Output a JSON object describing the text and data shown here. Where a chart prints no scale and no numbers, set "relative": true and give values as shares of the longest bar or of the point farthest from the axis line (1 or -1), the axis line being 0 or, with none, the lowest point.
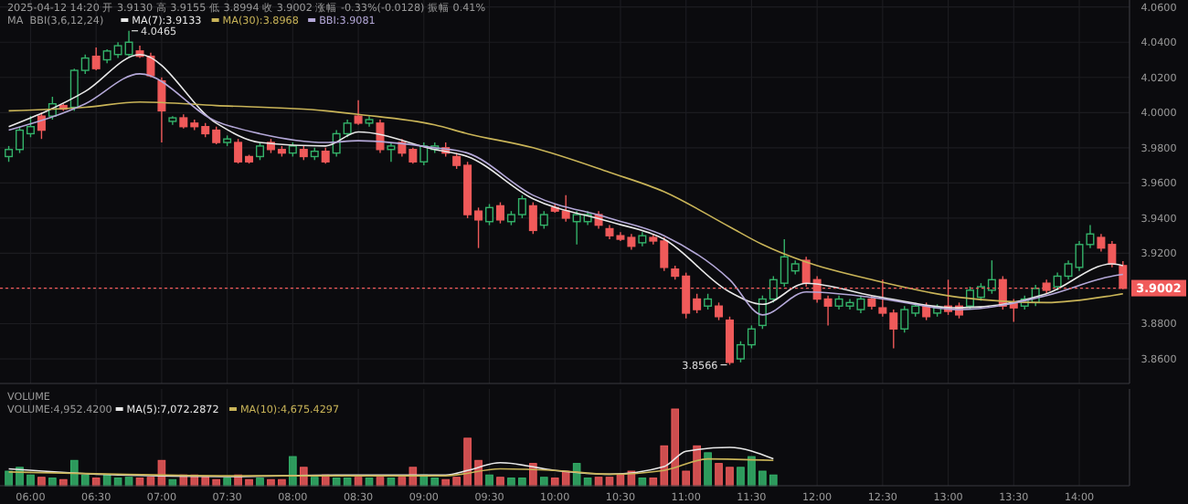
{
  "chart_data": [
    {
      "type": "candlestick",
      "title": "2025-04-12 14:20  开 3.9130  高 3.9155  低 3.8994  收 3.9002  涨幅 -0.33%(-0.0128)  振幅 0.41%",
      "legend": "top left",
      "grid": true,
      "tick_labels": "y",
      "annotations": [
        "MA",
        "BBI(3,6,12,24)",
        {
          "text": "4.0465",
          "x": "2025-04-12T06:45",
          "y": 4.0465
        },
        {
          "text": "3.8566",
          "x": "2025-04-12T11:20",
          "y": 3.8566
        }
      ],
      "xlim": [
        "2025-04-12T05:46",
        "2025-04-12T14:23"
      ],
      "xticks": [
        {
          "value": "2025-04-12T06:00",
          "label": null
        },
        {
          "value": "2025-04-12T06:30",
          "label": null
        },
        {
          "value": "2025-04-12T07:00",
          "label": null
        },
        {
          "value": "2025-04-12T07:30",
          "label": null
        },
        {
          "value": "2025-04-12T08:00",
          "label": null
        },
        {
          "value": "2025-04-12T08:30",
          "label": null
        },
        {
          "value": "2025-04-12T09:00",
          "label": null
        },
        {
          "value": "2025-04-12T09:30",
          "label": null
        },
        {
          "value": "2025-04-12T10:00",
          "label": null
        },
        {
          "value": "2025-04-12T10:30",
          "label": null
        },
        {
          "value": "2025-04-12T11:00",
          "label": null
        },
        {
          "value": "2025-04-12T11:30",
          "label": null
        },
        {
          "value": "2025-04-12T12:00",
          "label": null
        },
        {
          "value": "2025-04-12T12:30",
          "label": null
        },
        {
          "value": "2025-04-12T13:00",
          "label": null
        },
        {
          "value": "2025-04-12T13:30",
          "label": null
        },
        {
          "value": "2025-04-12T14:00",
          "label": null
        }
      ],
      "ylim": [
        3.846,
        4.064
      ],
      "yticks": [
        {
          "value": 3.86,
          "label": "3.8600"
        },
        {
          "value": 3.88,
          "label": "3.8800"
        },
        {
          "value": 3.9,
          "label": null
        },
        {
          "value": 3.92,
          "label": "3.9200"
        },
        {
          "value": 3.94,
          "label": "3.9400"
        },
        {
          "value": 3.96,
          "label": "3.9600"
        },
        {
          "value": 3.98,
          "label": "3.9800"
        },
        {
          "value": 4.0,
          "label": "4.0000"
        },
        {
          "value": 4.02,
          "label": "4.0200"
        },
        {
          "value": 4.04,
          "label": "4.0400"
        },
        {
          "value": 4.06,
          "label": "4.0600"
        }
      ],
      "ref_lines": [
        {
          "axis": "y",
          "value": 3.9002,
          "label": "3.9002",
          "color": "#f05a5a",
          "line_style": "dotted"
        }
      ],
      "x": [
        "2025-04-12T05:50",
        "2025-04-12T05:55",
        "2025-04-12T06:00",
        "2025-04-12T06:05",
        "2025-04-12T06:10",
        "2025-04-12T06:15",
        "2025-04-12T06:20",
        "2025-04-12T06:25",
        "2025-04-12T06:30",
        "2025-04-12T06:35",
        "2025-04-12T06:40",
        "2025-04-12T06:45",
        "2025-04-12T06:50",
        "2025-04-12T06:55",
        "2025-04-12T07:00",
        "2025-04-12T07:05",
        "2025-04-12T07:10",
        "2025-04-12T07:15",
        "2025-04-12T07:20",
        "2025-04-12T07:25",
        "2025-04-12T07:30",
        "2025-04-12T07:35",
        "2025-04-12T07:40",
        "2025-04-12T07:45",
        "2025-04-12T07:50",
        "2025-04-12T07:55",
        "2025-04-12T08:00",
        "2025-04-12T08:05",
        "2025-04-12T08:10",
        "2025-04-12T08:15",
        "2025-04-12T08:20",
        "2025-04-12T08:25",
        "2025-04-12T08:30",
        "2025-04-12T08:35",
        "2025-04-12T08:40",
        "2025-04-12T08:45",
        "2025-04-12T08:50",
        "2025-04-12T08:55",
        "2025-04-12T09:00",
        "2025-04-12T09:05",
        "2025-04-12T09:10",
        "2025-04-12T09:15",
        "2025-04-12T09:20",
        "2025-04-12T09:25",
        "2025-04-12T09:30",
        "2025-04-12T09:35",
        "2025-04-12T09:40",
        "2025-04-12T09:45",
        "2025-04-12T09:50",
        "2025-04-12T09:55",
        "2025-04-12T10:00",
        "2025-04-12T10:05",
        "2025-04-12T10:10",
        "2025-04-12T10:15",
        "2025-04-12T10:20",
        "2025-04-12T10:25",
        "2025-04-12T10:30",
        "2025-04-12T10:35",
        "2025-04-12T10:40",
        "2025-04-12T10:45",
        "2025-04-12T10:50",
        "2025-04-12T10:55",
        "2025-04-12T11:00",
        "2025-04-12T11:05",
        "2025-04-12T11:10",
        "2025-04-12T11:15",
        "2025-04-12T11:20",
        "2025-04-12T11:25",
        "2025-04-12T11:30",
        "2025-04-12T11:35",
        "2025-04-12T11:40",
        "2025-04-12T11:45",
        "2025-04-12T11:50",
        "2025-04-12T11:55",
        "2025-04-12T12:00",
        "2025-04-12T12:05",
        "2025-04-12T12:10",
        "2025-04-12T12:15",
        "2025-04-12T12:20",
        "2025-04-12T12:25",
        "2025-04-12T12:30",
        "2025-04-12T12:35",
        "2025-04-12T12:40",
        "2025-04-12T12:45",
        "2025-04-12T12:50",
        "2025-04-12T12:55",
        "2025-04-12T13:00",
        "2025-04-12T13:05",
        "2025-04-12T13:10",
        "2025-04-12T13:15",
        "2025-04-12T13:20",
        "2025-04-12T13:25",
        "2025-04-12T13:30",
        "2025-04-12T13:35",
        "2025-04-12T13:40",
        "2025-04-12T13:45",
        "2025-04-12T13:50",
        "2025-04-12T13:55",
        "2025-04-12T14:00",
        "2025-04-12T14:05",
        "2025-04-12T14:10",
        "2025-04-12T14:15",
        "2025-04-12T14:20"
      ],
      "ohlc": [
        [
          3.975,
          3.981,
          3.972,
          3.979
        ],
        [
          3.979,
          3.992,
          3.977,
          3.99
        ],
        [
          3.988,
          3.998,
          3.986,
          3.992
        ],
        [
          3.998,
          4.0,
          3.985,
          3.99
        ],
        [
          3.998,
          4.009,
          3.996,
          4.005
        ],
        [
          4.004,
          4.005,
          4.001,
          4.002
        ],
        [
          4.003,
          4.025,
          4.001,
          4.024
        ],
        [
          4.024,
          4.033,
          4.022,
          4.031
        ],
        [
          4.032,
          4.037,
          4.024,
          4.025
        ],
        [
          4.03,
          4.036,
          4.028,
          4.035
        ],
        [
          4.033,
          4.04,
          4.031,
          4.038
        ],
        [
          4.033,
          4.0465,
          4.032,
          4.04
        ],
        [
          4.035,
          4.038,
          4.031,
          4.032
        ],
        [
          4.032,
          4.034,
          4.02,
          4.021
        ],
        [
          4.018,
          4.02,
          3.983,
          4.001
        ],
        [
          3.995,
          3.998,
          3.993,
          3.997
        ],
        [
          3.997,
          3.999,
          3.991,
          3.992
        ],
        [
          3.994,
          3.996,
          3.99,
          3.992
        ],
        [
          3.992,
          3.994,
          3.986,
          3.988
        ],
        [
          3.99,
          3.992,
          3.982,
          3.983
        ],
        [
          3.983,
          3.987,
          3.981,
          3.985
        ],
        [
          3.983,
          3.985,
          3.971,
          3.972
        ],
        [
          3.975,
          3.976,
          3.971,
          3.972
        ],
        [
          3.975,
          3.983,
          3.973,
          3.981
        ],
        [
          3.983,
          3.985,
          3.977,
          3.979
        ],
        [
          3.979,
          3.981,
          3.975,
          3.977
        ],
        [
          3.977,
          3.983,
          3.975,
          3.981
        ],
        [
          3.979,
          3.981,
          3.973,
          3.975
        ],
        [
          3.975,
          3.98,
          3.973,
          3.978
        ],
        [
          3.978,
          3.98,
          3.971,
          3.972
        ],
        [
          3.977,
          3.99,
          3.975,
          3.988
        ],
        [
          3.988,
          3.996,
          3.986,
          3.994
        ],
        [
          3.998,
          4.007,
          3.993,
          3.994
        ],
        [
          3.994,
          3.998,
          3.992,
          3.996
        ],
        [
          3.994,
          3.996,
          3.977,
          3.979
        ],
        [
          3.979,
          3.983,
          3.972,
          3.981
        ],
        [
          3.983,
          3.985,
          3.975,
          3.977
        ],
        [
          3.979,
          3.98,
          3.971,
          3.972
        ],
        [
          3.972,
          3.983,
          3.97,
          3.981
        ],
        [
          3.979,
          3.983,
          3.977,
          3.981
        ],
        [
          3.98,
          3.983,
          3.975,
          3.977
        ],
        [
          3.975,
          3.977,
          3.968,
          3.97
        ],
        [
          3.97,
          3.972,
          3.94,
          3.942
        ],
        [
          3.944,
          3.946,
          3.923,
          3.939
        ],
        [
          3.938,
          3.948,
          3.936,
          3.946
        ],
        [
          3.947,
          3.949,
          3.937,
          3.939
        ],
        [
          3.938,
          3.944,
          3.936,
          3.942
        ],
        [
          3.942,
          3.953,
          3.94,
          3.951
        ],
        [
          3.947,
          3.949,
          3.931,
          3.933
        ],
        [
          3.936,
          3.944,
          3.934,
          3.942
        ],
        [
          3.946,
          3.948,
          3.943,
          3.944
        ],
        [
          3.944,
          3.953,
          3.938,
          3.94
        ],
        [
          3.938,
          3.944,
          3.925,
          3.942
        ],
        [
          3.938,
          3.944,
          3.936,
          3.942
        ],
        [
          3.942,
          3.944,
          3.934,
          3.936
        ],
        [
          3.934,
          3.936,
          3.928,
          3.93
        ],
        [
          3.93,
          3.932,
          3.927,
          3.928
        ],
        [
          3.929,
          3.931,
          3.922,
          3.924
        ],
        [
          3.926,
          3.932,
          3.924,
          3.93
        ],
        [
          3.929,
          3.931,
          3.925,
          3.927
        ],
        [
          3.927,
          3.929,
          3.91,
          3.912
        ],
        [
          3.911,
          3.913,
          3.905,
          3.907
        ],
        [
          3.907,
          3.909,
          3.883,
          3.886
        ],
        [
          3.894,
          3.897,
          3.886,
          3.888
        ],
        [
          3.89,
          3.897,
          3.888,
          3.894
        ],
        [
          3.89,
          3.892,
          3.882,
          3.884
        ],
        [
          3.882,
          3.884,
          3.8566,
          3.858
        ],
        [
          3.86,
          3.87,
          3.858,
          3.868
        ],
        [
          3.868,
          3.879,
          3.866,
          3.877
        ],
        [
          3.879,
          3.896,
          3.877,
          3.894
        ],
        [
          3.894,
          3.907,
          3.892,
          3.905
        ],
        [
          3.903,
          3.928,
          3.901,
          3.918
        ],
        [
          3.91,
          3.916,
          3.908,
          3.914
        ],
        [
          3.916,
          3.918,
          3.901,
          3.903
        ],
        [
          3.905,
          3.907,
          3.892,
          3.894
        ],
        [
          3.894,
          3.896,
          3.879,
          3.89
        ],
        [
          3.89,
          3.896,
          3.888,
          3.894
        ],
        [
          3.89,
          3.894,
          3.888,
          3.892
        ],
        [
          3.888,
          3.896,
          3.886,
          3.894
        ],
        [
          3.894,
          3.896,
          3.888,
          3.89
        ],
        [
          3.889,
          3.905,
          3.884,
          3.886
        ],
        [
          3.886,
          3.888,
          3.866,
          3.877
        ],
        [
          3.877,
          3.89,
          3.875,
          3.888
        ],
        [
          3.886,
          3.892,
          3.884,
          3.89
        ],
        [
          3.89,
          3.892,
          3.882,
          3.884
        ],
        [
          3.886,
          3.891,
          3.884,
          3.889
        ],
        [
          3.89,
          3.905,
          3.885,
          3.887
        ],
        [
          3.89,
          3.892,
          3.883,
          3.885
        ],
        [
          3.89,
          3.901,
          3.888,
          3.899
        ],
        [
          3.895,
          3.903,
          3.893,
          3.901
        ],
        [
          3.899,
          3.916,
          3.897,
          3.905
        ],
        [
          3.905,
          3.907,
          3.888,
          3.89
        ],
        [
          3.892,
          3.894,
          3.881,
          3.889
        ],
        [
          3.89,
          3.896,
          3.888,
          3.894
        ],
        [
          3.892,
          3.902,
          3.89,
          3.9
        ],
        [
          3.903,
          3.905,
          3.897,
          3.899
        ],
        [
          3.901,
          3.909,
          3.899,
          3.907
        ],
        [
          3.907,
          3.916,
          3.905,
          3.914
        ],
        [
          3.912,
          3.927,
          3.91,
          3.925
        ],
        [
          3.925,
          3.936,
          3.923,
          3.931
        ],
        [
          3.929,
          3.931,
          3.921,
          3.923
        ],
        [
          3.925,
          3.927,
          3.912,
          3.914
        ],
        [
          3.913,
          3.9155,
          3.8994,
          3.9002
        ]
      ],
      "series": [
        {
          "type": "line",
          "name": "MA(7):3.9133",
          "color": "#e8e8e8",
          "x": [
            "2025-04-12T05:50",
            "2025-04-12T06:25",
            "2025-04-12T06:50",
            "2025-04-12T07:25",
            "2025-04-12T07:45",
            "2025-04-12T08:15",
            "2025-04-12T08:30",
            "2025-04-12T09:05",
            "2025-04-12T09:20",
            "2025-04-12T09:50",
            "2025-04-12T10:25",
            "2025-04-12T10:50",
            "2025-04-12T11:20",
            "2025-04-12T11:35",
            "2025-04-12T11:55",
            "2025-04-12T12:25",
            "2025-04-12T13:05",
            "2025-04-12T13:45",
            "2025-04-12T14:15",
            "2025-04-12T14:20"
          ],
          "values": [
            3.992,
            4.012,
            4.033,
            3.994,
            3.983,
            3.981,
            3.989,
            3.979,
            3.975,
            3.951,
            3.938,
            3.928,
            3.898,
            3.891,
            3.903,
            3.896,
            3.889,
            3.897,
            3.914,
            3.913
          ]
        },
        {
          "type": "line",
          "name": "MA(30):3.8968",
          "color": "#c9b458",
          "x": [
            "2025-04-12T05:50",
            "2025-04-12T06:25",
            "2025-04-12T06:50",
            "2025-04-12T07:25",
            "2025-04-12T08:15",
            "2025-04-12T08:30",
            "2025-04-12T09:05",
            "2025-04-12T09:20",
            "2025-04-12T09:50",
            "2025-04-12T10:25",
            "2025-04-12T10:50",
            "2025-04-12T11:20",
            "2025-04-12T11:35",
            "2025-04-12T11:55",
            "2025-04-12T12:25",
            "2025-04-12T13:05",
            "2025-04-12T13:45",
            "2025-04-12T14:15",
            "2025-04-12T14:20"
          ],
          "values": [
            4.001,
            4.003,
            4.006,
            4.004,
            4.001,
            3.999,
            3.993,
            3.988,
            3.98,
            3.966,
            3.955,
            3.935,
            3.925,
            3.915,
            3.905,
            3.895,
            3.892,
            3.896,
            3.897
          ]
        },
        {
          "type": "line",
          "name": "BBI:3.9081",
          "color": "#b4a8d8",
          "x": [
            "2025-04-12T05:50",
            "2025-04-12T06:25",
            "2025-04-12T06:50",
            "2025-04-12T07:25",
            "2025-04-12T07:45",
            "2025-04-12T08:15",
            "2025-04-12T08:30",
            "2025-04-12T09:05",
            "2025-04-12T09:20",
            "2025-04-12T09:50",
            "2025-04-12T10:25",
            "2025-04-12T10:50",
            "2025-04-12T11:20",
            "2025-04-12T11:35",
            "2025-04-12T11:55",
            "2025-04-12T12:25",
            "2025-04-12T13:05",
            "2025-04-12T13:45",
            "2025-04-12T14:15",
            "2025-04-12T14:20"
          ],
          "values": [
            3.99,
            4.005,
            4.022,
            3.995,
            3.988,
            3.983,
            3.984,
            3.98,
            3.977,
            3.953,
            3.94,
            3.93,
            3.905,
            3.885,
            3.898,
            3.895,
            3.888,
            3.896,
            3.907,
            3.908
          ]
        }
      ]
    },
    {
      "type": "bar",
      "relative": true,
      "title": "VOLUME",
      "legend": "top left",
      "grid": true,
      "tick_labels": "x",
      "annotations": [
        "VOLUME:4,952.4200"
      ],
      "xlim": [
        "2025-04-12T05:46",
        "2025-04-12T14:23"
      ],
      "xticks": [
        {
          "value": "2025-04-12T06:00",
          "label": "06:00"
        },
        {
          "value": "2025-04-12T06:30",
          "label": "06:30"
        },
        {
          "value": "2025-04-12T07:00",
          "label": "07:00"
        },
        {
          "value": "2025-04-12T07:30",
          "label": "07:30"
        },
        {
          "value": "2025-04-12T08:00",
          "label": "08:00"
        },
        {
          "value": "2025-04-12T08:30",
          "label": "08:30"
        },
        {
          "value": "2025-04-12T09:00",
          "label": "09:00"
        },
        {
          "value": "2025-04-12T09:30",
          "label": "09:30"
        },
        {
          "value": "2025-04-12T10:00",
          "label": "10:00"
        },
        {
          "value": "2025-04-12T10:30",
          "label": "10:30"
        },
        {
          "value": "2025-04-12T11:00",
          "label": "11:00"
        },
        {
          "value": "2025-04-12T11:30",
          "label": "11:30"
        },
        {
          "value": "2025-04-12T12:00",
          "label": "12:00"
        },
        {
          "value": "2025-04-12T12:30",
          "label": "12:30"
        },
        {
          "value": "2025-04-12T13:00",
          "label": "13:00"
        },
        {
          "value": "2025-04-12T13:30",
          "label": "13:30"
        },
        {
          "value": "2025-04-12T14:00",
          "label": "14:00"
        }
      ],
      "x": [
        "2025-04-12T05:50",
        "2025-04-12T05:55",
        "2025-04-12T06:00",
        "2025-04-12T06:05",
        "2025-04-12T06:10",
        "2025-04-12T06:15",
        "2025-04-12T06:20",
        "2025-04-12T06:25",
        "2025-04-12T06:30",
        "2025-04-12T06:35",
        "2025-04-12T06:40",
        "2025-04-12T06:45",
        "2025-04-12T06:50",
        "2025-04-12T06:55",
        "2025-04-12T07:00",
        "2025-04-12T07:05",
        "2025-04-12T07:10",
        "2025-04-12T07:15",
        "2025-04-12T07:20",
        "2025-04-12T07:25",
        "2025-04-12T07:30",
        "2025-04-12T07:35",
        "2025-04-12T07:40",
        "2025-04-12T07:45",
        "2025-04-12T07:50",
        "2025-04-12T07:55",
        "2025-04-12T08:00",
        "2025-04-12T08:05",
        "2025-04-12T08:10",
        "2025-04-12T08:15",
        "2025-04-12T08:20",
        "2025-04-12T08:25",
        "2025-04-12T08:30",
        "2025-04-12T08:35",
        "2025-04-12T08:40",
        "2025-04-12T08:45",
        "2025-04-12T08:50",
        "2025-04-12T08:55",
        "2025-04-12T09:00",
        "2025-04-12T09:05",
        "2025-04-12T09:10",
        "2025-04-12T09:15",
        "2025-04-12T09:20",
        "2025-04-12T09:25",
        "2025-04-12T09:30",
        "2025-04-12T09:35",
        "2025-04-12T09:40",
        "2025-04-12T09:45",
        "2025-04-12T09:50",
        "2025-04-12T09:55",
        "2025-04-12T10:00",
        "2025-04-12T10:05",
        "2025-04-12T10:10",
        "2025-04-12T10:15",
        "2025-04-12T10:20",
        "2025-04-12T10:25",
        "2025-04-12T10:30",
        "2025-04-12T10:35",
        "2025-04-12T10:40",
        "2025-04-12T10:45",
        "2025-04-12T10:50",
        "2025-04-12T10:55",
        "2025-04-12T11:00",
        "2025-04-12T11:05",
        "2025-04-12T11:10",
        "2025-04-12T11:15",
        "2025-04-12T11:20",
        "2025-04-12T11:25",
        "2025-04-12T11:30",
        "2025-04-12T11:35",
        "2025-04-12T11:40"
      ],
      "values": [
        0.19,
        0.24,
        0.14,
        0.11,
        0.1,
        0.08,
        0.33,
        0.14,
        0.1,
        0.14,
        0.1,
        0.11,
        0.1,
        0.11,
        0.33,
        0.08,
        0.14,
        0.14,
        0.11,
        0.08,
        0.1,
        0.14,
        0.08,
        0.1,
        0.08,
        0.08,
        0.38,
        0.24,
        0.11,
        0.14,
        0.1,
        0.1,
        0.11,
        0.1,
        0.11,
        0.1,
        0.11,
        0.24,
        0.14,
        0.1,
        0.08,
        0.11,
        0.62,
        0.33,
        0.14,
        0.11,
        0.1,
        0.1,
        0.29,
        0.11,
        0.1,
        0.19,
        0.29,
        0.1,
        0.11,
        0.11,
        0.14,
        0.19,
        0.1,
        0.1,
        0.52,
        1,
        0.19,
        0.52,
        0.43,
        0.29,
        0.24,
        0.24,
        0.38,
        0.19,
        0.14
      ],
      "colors": [
        "#34b36a",
        "#34b36a",
        "#34b36a",
        "#f05a5a",
        "#34b36a",
        "#f05a5a",
        "#34b36a",
        "#34b36a",
        "#f05a5a",
        "#34b36a",
        "#34b36a",
        "#34b36a",
        "#f05a5a",
        "#f05a5a",
        "#f05a5a",
        "#34b36a",
        "#f05a5a",
        "#f05a5a",
        "#f05a5a",
        "#f05a5a",
        "#34b36a",
        "#f05a5a",
        "#f05a5a",
        "#34b36a",
        "#f05a5a",
        "#f05a5a",
        "#34b36a",
        "#f05a5a",
        "#34b36a",
        "#f05a5a",
        "#34b36a",
        "#34b36a",
        "#f05a5a",
        "#34b36a",
        "#f05a5a",
        "#34b36a",
        "#f05a5a",
        "#f05a5a",
        "#34b36a",
        "#34b36a",
        "#f05a5a",
        "#f05a5a",
        "#f05a5a",
        "#f05a5a",
        "#34b36a",
        "#f05a5a",
        "#34b36a",
        "#34b36a",
        "#f05a5a",
        "#34b36a",
        "#f05a5a",
        "#f05a5a",
        "#34b36a",
        "#34b36a",
        "#f05a5a",
        "#f05a5a",
        "#f05a5a",
        "#f05a5a",
        "#34b36a",
        "#f05a5a",
        "#f05a5a",
        "#f05a5a",
        "#f05a5a",
        "#f05a5a",
        "#34b36a",
        "#f05a5a",
        "#f05a5a",
        "#34b36a",
        "#34b36a",
        "#34b36a",
        "#34b36a"
      ],
      "series": [
        {
          "type": "line",
          "name": "MA(5):7,072.2872",
          "color": "#e8e8e8",
          "x": [
            "2025-04-12T05:50",
            "2025-04-12T06:40",
            "2025-04-12T07:30",
            "2025-04-12T08:20",
            "2025-04-12T09:10",
            "2025-04-12T09:20",
            "2025-04-12T09:35",
            "2025-04-12T10:00",
            "2025-04-12T10:25",
            "2025-04-12T10:50",
            "2025-04-12T11:00",
            "2025-04-12T11:20",
            "2025-04-12T11:40"
          ],
          "values": [
            0.22,
            0.14,
            0.12,
            0.14,
            0.14,
            0.2,
            0.3,
            0.2,
            0.15,
            0.25,
            0.45,
            0.5,
            0.35
          ]
        },
        {
          "type": "line",
          "name": "MA(10):4,675.4297",
          "color": "#c9b458",
          "x": [
            "2025-04-12T05:50",
            "2025-04-12T06:40",
            "2025-04-12T07:30",
            "2025-04-12T08:20",
            "2025-04-12T09:10",
            "2025-04-12T09:35",
            "2025-04-12T10:00",
            "2025-04-12T10:25",
            "2025-04-12T10:50",
            "2025-04-12T11:10",
            "2025-04-12T11:40"
          ],
          "values": [
            0.18,
            0.15,
            0.13,
            0.13,
            0.13,
            0.22,
            0.2,
            0.15,
            0.2,
            0.35,
            0.33
          ]
        }
      ]
    }
  ]
}
